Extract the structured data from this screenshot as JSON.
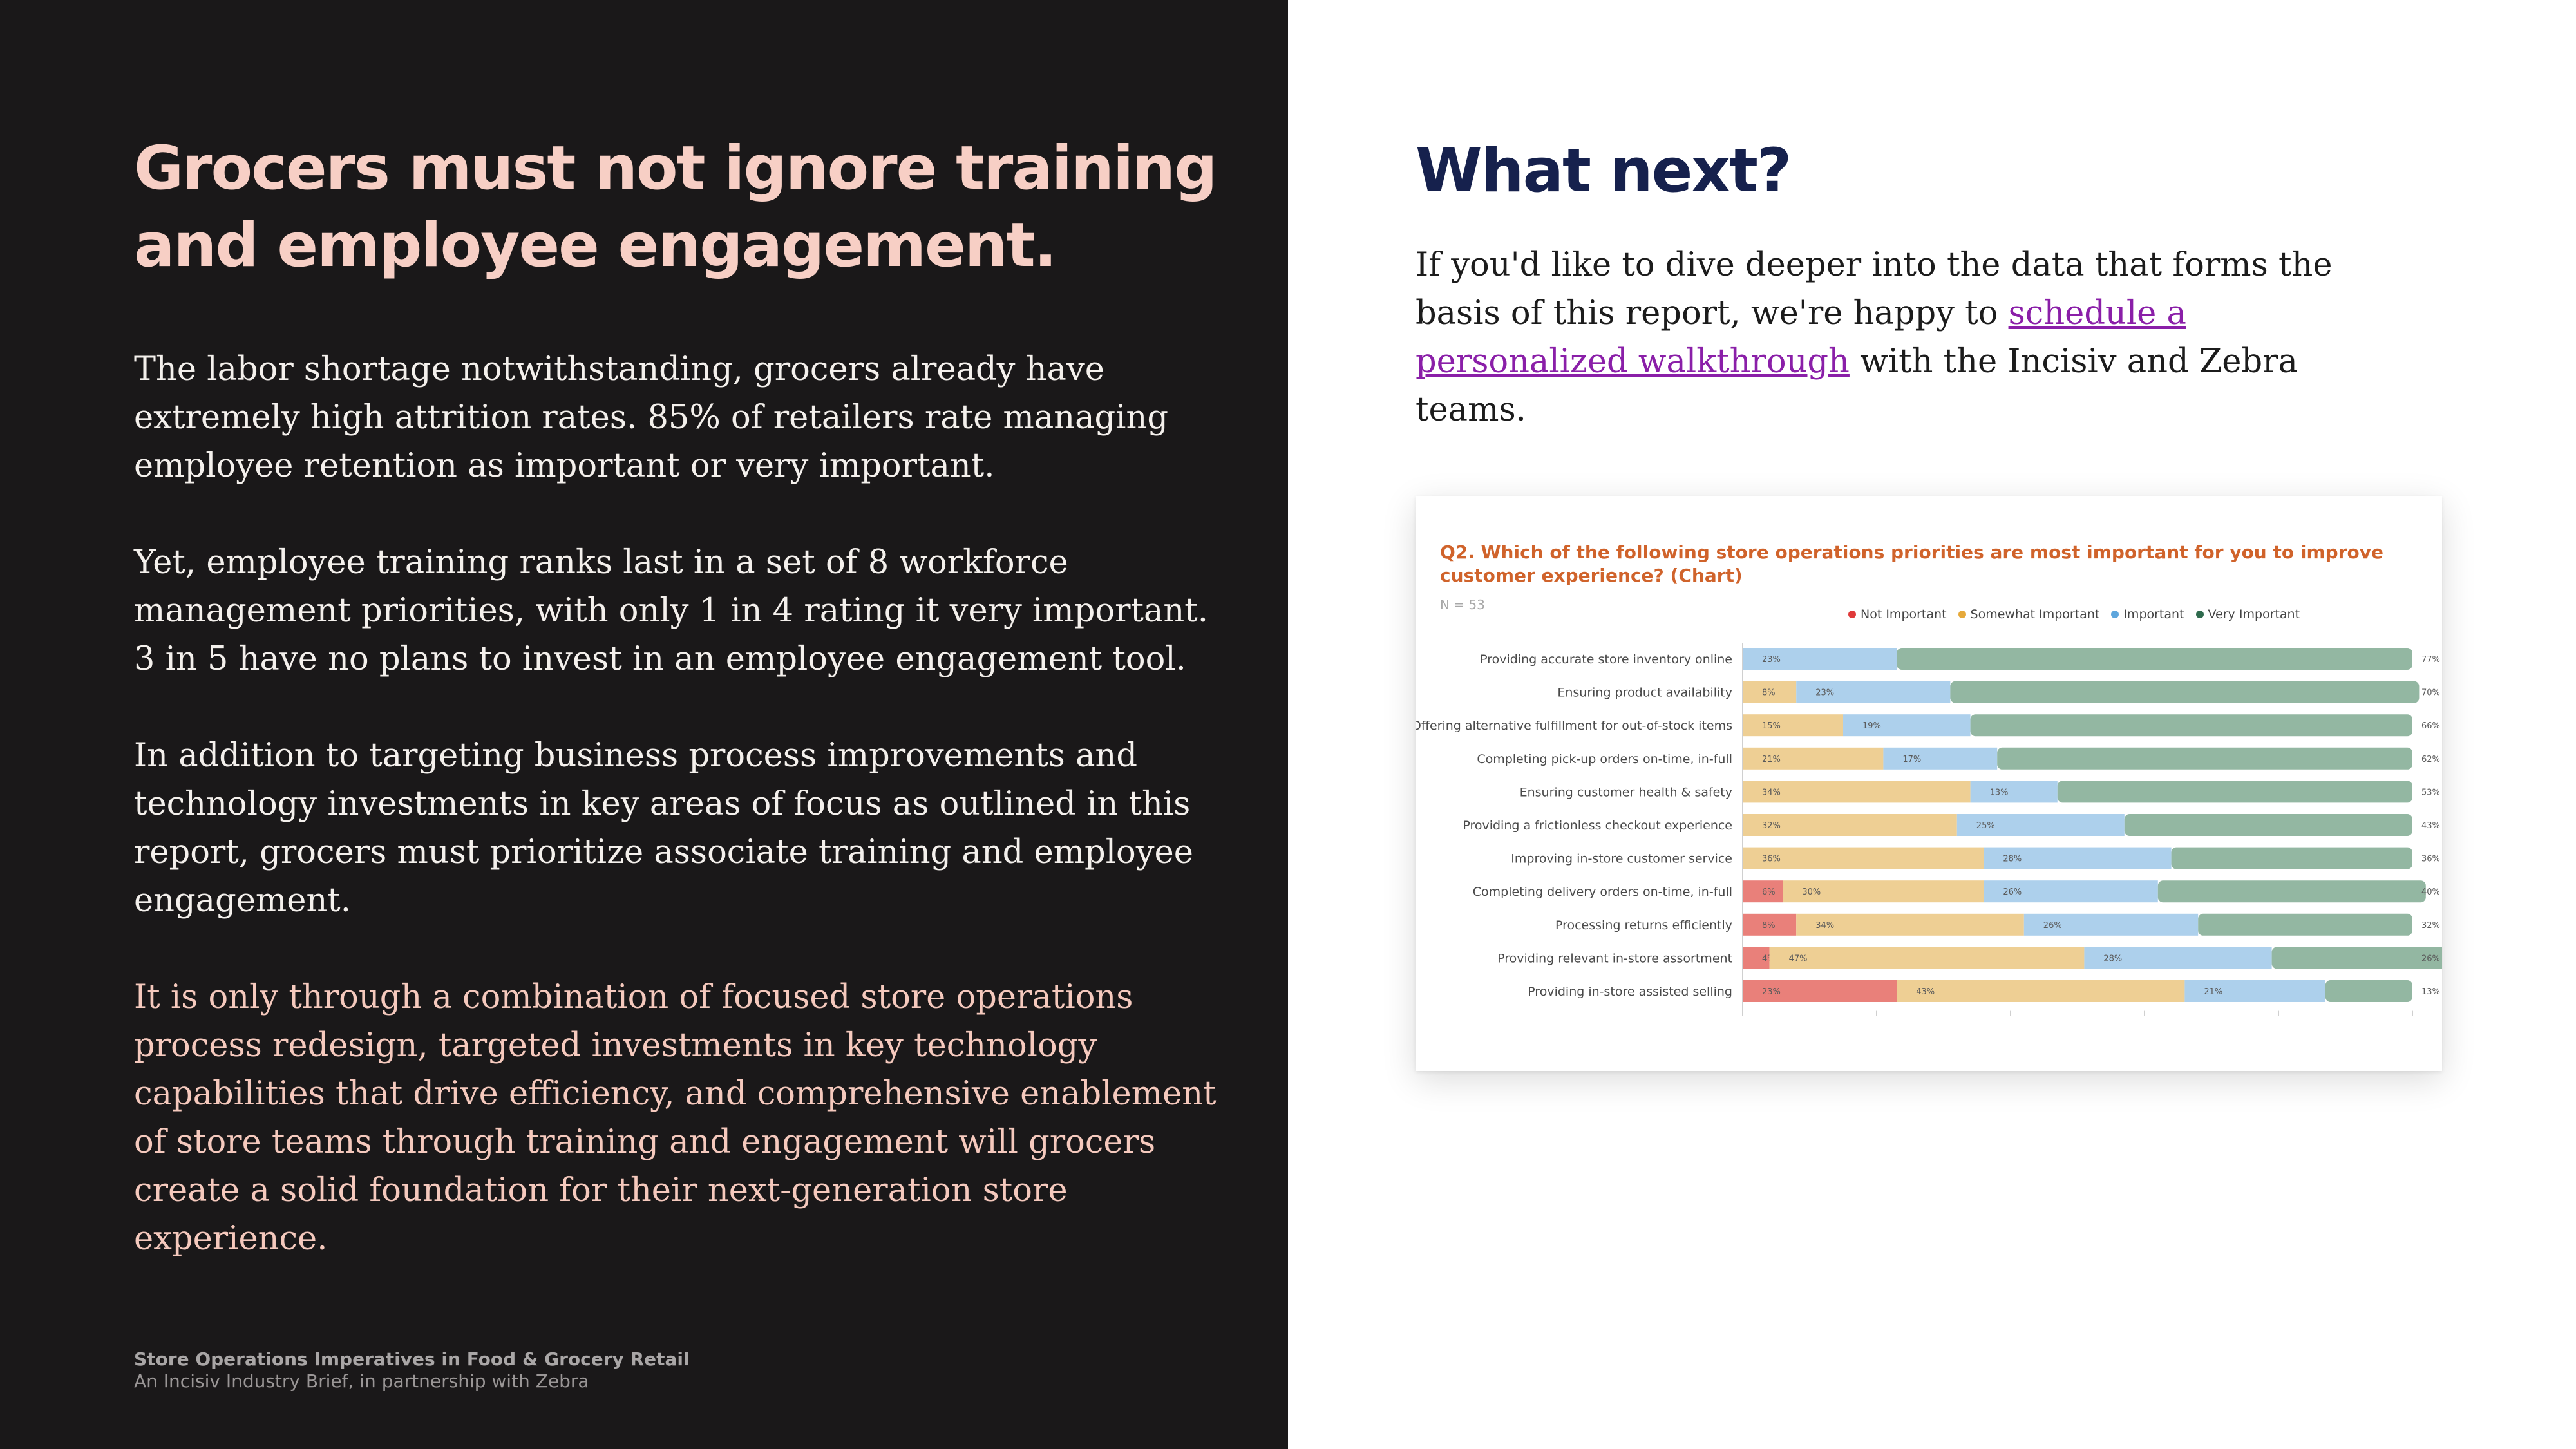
{
  "left": {
    "headline": "Grocers must not ignore training and employee engagement.",
    "paragraphs": [
      "The labor shortage notwithstanding, grocers already have extremely high attrition rates. 85% of retailers rate managing employee retention as important or very important.",
      "Yet, employee training ranks last in a set of 8 workforce management priorities, with only 1 in 4 rating it very important. 3 in 5 have no plans to invest in an employee engagement tool.",
      "In addition to targeting business process improvements and technology investments in key areas of focus as outlined in this report, grocers must prioritize associate training and employee engagement."
    ],
    "closing": "It is only through a combination of focused store operations process redesign, targeted investments in key technology capabilities that drive efficiency, and comprehensive enablement of store teams through training and engagement will grocers create a solid foundation for their next-generation store experience.",
    "footer_title": "Store Operations Imperatives in Food & Grocery Retail",
    "footer_subtitle": "An Incisiv Industry Brief, in partnership with Zebra"
  },
  "right": {
    "title": "What next?",
    "text_before": "If you'd like to dive deeper into the data that forms the basis of this report, we're happy to ",
    "link_text": "schedule a personalized walkthrough",
    "text_after": " with the Incisiv and Zebra teams."
  },
  "colors": {
    "left_bg": "#1a1819",
    "headline": "#f7cfc5",
    "accent_text": "#f5c9bd",
    "next_title": "#16214d",
    "link": "#8a1fa8",
    "chart_title": "#d0632b"
  },
  "chart_data": {
    "type": "bar",
    "stacked": true,
    "orientation": "horizontal",
    "title": "Q2. Which of the following store operations priorities are most important for you to improve customer experience? (Chart)",
    "note": "N = 53",
    "legend_position": "top-right",
    "categories": [
      "Providing accurate store inventory online",
      "Ensuring product availability",
      "Offering alternative fulfillment for out-of-stock items",
      "Completing pick-up orders on-time, in-full",
      "Ensuring customer health & safety",
      "Providing a frictionless checkout experience",
      "Improving in-store customer service",
      "Completing delivery orders on-time, in-full",
      "Processing returns efficiently",
      "Providing relevant in-store assortment",
      "Providing in-store assisted selling"
    ],
    "series": [
      {
        "name": "Not Important",
        "color": "#e9807a",
        "values": [
          0,
          0,
          0,
          0,
          0,
          0,
          0,
          6,
          8,
          4,
          23
        ],
        "labels": [
          "",
          "",
          "",
          "",
          "",
          "",
          "",
          "6%",
          "8%",
          "4%",
          "23%"
        ]
      },
      {
        "name": "Somewhat Important",
        "color": "#eecf94",
        "values": [
          0,
          8,
          15,
          21,
          34,
          32,
          36,
          30,
          34,
          47,
          43
        ],
        "labels": [
          "",
          "8%",
          "15%",
          "21%",
          "34%",
          "32%",
          "36%",
          "30%",
          "34%",
          "47%",
          "43%"
        ]
      },
      {
        "name": "Important",
        "color": "#add0ec",
        "values": [
          23,
          23,
          19,
          17,
          13,
          25,
          28,
          26,
          26,
          28,
          21
        ],
        "labels": [
          "23%",
          "23%",
          "19%",
          "17%",
          "13%",
          "25%",
          "28%",
          "26%",
          "26%",
          "28%",
          "21%"
        ]
      },
      {
        "name": "Very Important",
        "color": "#93b7a2",
        "values": [
          77,
          70,
          66,
          62,
          53,
          43,
          36,
          40,
          32,
          26,
          13
        ],
        "labels": [
          "77%",
          "70%",
          "66%",
          "62%",
          "53%",
          "43%",
          "36%",
          "40%",
          "32%",
          "26%",
          "13%"
        ]
      }
    ]
  }
}
